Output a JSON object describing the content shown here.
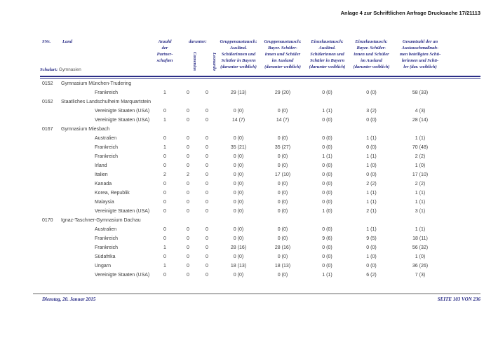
{
  "page": {
    "header_title": "Anlage 4 zur Schriftlichen Anfrage Drucksache 17/21113"
  },
  "table": {
    "schulart_label": "Schulart:",
    "schulart_value": "Gymnasien",
    "col_snr": "SNr.",
    "col_land": "Land",
    "col_anzahl": "Anzahl\nder\nPartner-\nschaften",
    "col_darunter": "darunter:",
    "col_comenius": "Comenius",
    "col_leonardo": "Leonardo",
    "col_gruppen_bayern": "Gruppenaustausch:\nAusländ.\nSchülerinnen und\nSchüler in Bayern\n(darunter weiblich)",
    "col_gruppen_ausland": "Gruppenaustausch:\nBayer. Schüler-\ninnen und Schüler\nim Ausland\n(darunter weiblich)",
    "col_einzel_bayern": "Einzelaustausch:\nAusländ.\nSchülerinnen und\nSchüler in Bayern\n(darunter weiblich)",
    "col_einzel_ausland": "Einzelaustausch:\nBayer. Schüler-\ninnen und Schüler\nim Ausland\n(darunter weiblich)",
    "col_gesamt": "Gesamtzahl der an\nAustauschmaßnah-\nmen beteiligten Schü-\nlerinnen und Schü-\nler (dar. weiblich)",
    "groups": [
      {
        "snr": "0152",
        "school": "Gymnasium München-Trudering",
        "rows": [
          {
            "land": "Frankreich",
            "values": [
              "1",
              "0",
              "0",
              "29 (13)",
              "29 (20)",
              "0 (0)",
              "0 (0)",
              "58 (33)"
            ]
          }
        ]
      },
      {
        "snr": "0162",
        "school": "Staatliches Landschulheim Marquartstein",
        "rows": [
          {
            "land": "Vereinigte Staaten (USA)",
            "values": [
              "0",
              "0",
              "0",
              "0 (0)",
              "0 (0)",
              "1 (1)",
              "3 (2)",
              "4 (3)"
            ]
          },
          {
            "land": "Vereinigte Staaten (USA)",
            "values": [
              "1",
              "0",
              "0",
              "14 (7)",
              "14 (7)",
              "0 (0)",
              "0 (0)",
              "28 (14)"
            ]
          }
        ]
      },
      {
        "snr": "0167",
        "school": "Gymnasium Miesbach",
        "rows": [
          {
            "land": "Australien",
            "values": [
              "0",
              "0",
              "0",
              "0 (0)",
              "0 (0)",
              "0 (0)",
              "1 (1)",
              "1 (1)"
            ]
          },
          {
            "land": "Frankreich",
            "values": [
              "1",
              "0",
              "0",
              "35 (21)",
              "35 (27)",
              "0 (0)",
              "0 (0)",
              "70 (48)"
            ]
          },
          {
            "land": "Frankreich",
            "values": [
              "0",
              "0",
              "0",
              "0 (0)",
              "0 (0)",
              "1 (1)",
              "1 (1)",
              "2 (2)"
            ]
          },
          {
            "land": "Irland",
            "values": [
              "0",
              "0",
              "0",
              "0 (0)",
              "0 (0)",
              "0 (0)",
              "1 (0)",
              "1 (0)"
            ]
          },
          {
            "land": "Italien",
            "values": [
              "2",
              "2",
              "0",
              "0 (0)",
              "17 (10)",
              "0 (0)",
              "0 (0)",
              "17 (10)"
            ]
          },
          {
            "land": "Kanada",
            "values": [
              "0",
              "0",
              "0",
              "0 (0)",
              "0 (0)",
              "0 (0)",
              "2 (2)",
              "2 (2)"
            ]
          },
          {
            "land": "Korea, Republik",
            "values": [
              "0",
              "0",
              "0",
              "0 (0)",
              "0 (0)",
              "0 (0)",
              "1 (1)",
              "1 (1)"
            ]
          },
          {
            "land": "Malaysia",
            "values": [
              "0",
              "0",
              "0",
              "0 (0)",
              "0 (0)",
              "0 (0)",
              "1 (1)",
              "1 (1)"
            ]
          },
          {
            "land": "Vereinigte Staaten (USA)",
            "values": [
              "0",
              "0",
              "0",
              "0 (0)",
              "0 (0)",
              "1 (0)",
              "2 (1)",
              "3 (1)"
            ]
          }
        ]
      },
      {
        "snr": "0170",
        "school": "Ignaz-Taschner-Gymnasium Dachau",
        "rows": [
          {
            "land": "Australien",
            "values": [
              "0",
              "0",
              "0",
              "0 (0)",
              "0 (0)",
              "0 (0)",
              "1 (1)",
              "1 (1)"
            ]
          },
          {
            "land": "Frankreich",
            "values": [
              "0",
              "0",
              "0",
              "0 (0)",
              "0 (0)",
              "9 (6)",
              "9 (5)",
              "18 (11)"
            ]
          },
          {
            "land": "Frankreich",
            "values": [
              "1",
              "0",
              "0",
              "28 (16)",
              "28 (16)",
              "0 (0)",
              "0 (0)",
              "56 (32)"
            ]
          },
          {
            "land": "Südafrika",
            "values": [
              "0",
              "0",
              "0",
              "0 (0)",
              "0 (0)",
              "0 (0)",
              "1 (0)",
              "1 (0)"
            ]
          },
          {
            "land": "Ungarn",
            "values": [
              "1",
              "0",
              "0",
              "18 (13)",
              "18 (13)",
              "0 (0)",
              "0 (0)",
              "36 (26)"
            ]
          },
          {
            "land": "Vereinigte Staaten (USA)",
            "values": [
              "0",
              "0",
              "0",
              "0 (0)",
              "0 (0)",
              "1 (1)",
              "6 (2)",
              "7 (3)"
            ]
          }
        ]
      }
    ]
  },
  "footer": {
    "date": "Dienstag, 20. Januar 2015",
    "page_info": "SEITE 103 VON 236"
  },
  "colors": {
    "accent_navy": "#2b2e87",
    "body_text": "#3c3c3c"
  }
}
